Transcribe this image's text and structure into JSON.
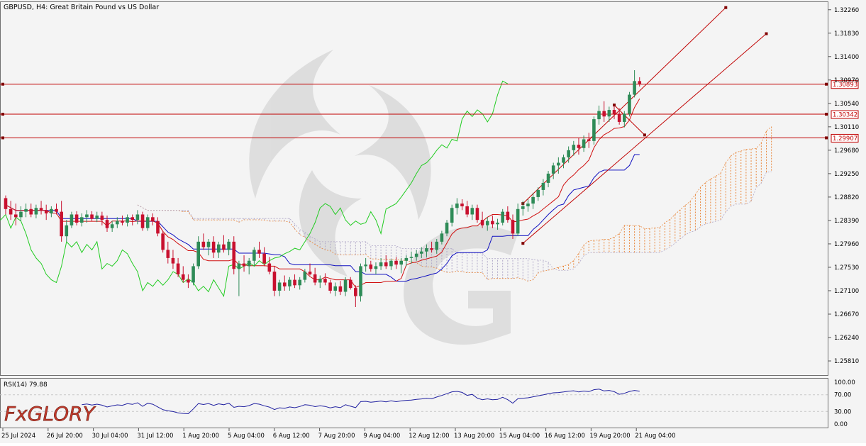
{
  "header": {
    "title": "GBPUSD, H4:  Great Britain Pound vs US Dollar"
  },
  "colors": {
    "bull": "#2e8b57",
    "bear": "#c8102e",
    "tenkan": "#d01010",
    "kijun": "#1010c0",
    "chikou": "#22cc22",
    "cloud_bull": "#e8863a",
    "cloud_bear": "#b0a8c8",
    "level": "#c00000",
    "rsi": "#2020a0",
    "grid": "#c8c8c8"
  },
  "price_axis": {
    "ticks": [
      "1.32260",
      "1.31830",
      "1.31400",
      "1.30970",
      "1.30540",
      "1.30110",
      "1.29680",
      "1.29250",
      "1.28820",
      "1.28390",
      "1.27960",
      "1.27530",
      "1.27100",
      "1.26670",
      "1.26240",
      "1.25810"
    ]
  },
  "time_axis": {
    "labels": [
      "25 Jul 2024",
      "26 Jul 20:00",
      "30 Jul 04:00",
      "31 Jul 12:00",
      "1 Aug 20:00",
      "5 Aug 04:00",
      "6 Aug 12:00",
      "7 Aug 20:00",
      "9 Aug 04:00",
      "12 Aug 12:00",
      "13 Aug 20:00",
      "15 Aug 04:00",
      "16 Aug 12:00",
      "19 Aug 20:00",
      "21 Aug 04:00"
    ]
  },
  "levels": [
    {
      "price": 1.30893,
      "label": "1.30893"
    },
    {
      "price": 1.30342,
      "label": "1.30342"
    },
    {
      "price": 1.29907,
      "label": "1.29907"
    }
  ],
  "rsi": {
    "label": "RSI(14) 79.88",
    "ticks": [
      "100.00",
      "70.00",
      "30.00",
      "0.00"
    ]
  },
  "logo": {
    "text": "FxGLORY"
  },
  "chart_data": {
    "type": "candlestick",
    "symbol": "GBPUSD",
    "timeframe": "H4",
    "ylim": [
      1.2555,
      1.324
    ],
    "candles": [
      [
        1.288,
        1.2885,
        1.285,
        1.286
      ],
      [
        1.286,
        1.2875,
        1.284,
        1.285
      ],
      [
        1.285,
        1.287,
        1.283,
        1.2845
      ],
      [
        1.2845,
        1.2865,
        1.2838,
        1.2855
      ],
      [
        1.2855,
        1.287,
        1.2845,
        1.286
      ],
      [
        1.286,
        1.287,
        1.2845,
        1.285
      ],
      [
        1.285,
        1.2868,
        1.2843,
        1.2862
      ],
      [
        1.2862,
        1.2875,
        1.285,
        1.2858
      ],
      [
        1.2858,
        1.2868,
        1.284,
        1.2852
      ],
      [
        1.2852,
        1.2865,
        1.2845,
        1.286
      ],
      [
        1.286,
        1.287,
        1.285,
        1.2855
      ],
      [
        1.2855,
        1.2875,
        1.28,
        1.281
      ],
      [
        1.281,
        1.284,
        1.28,
        1.283
      ],
      [
        1.283,
        1.2855,
        1.2825,
        1.285
      ],
      [
        1.285,
        1.2856,
        1.283,
        1.2835
      ],
      [
        1.2835,
        1.2852,
        1.2828,
        1.2845
      ],
      [
        1.2845,
        1.2858,
        1.2835,
        1.285
      ],
      [
        1.285,
        1.2856,
        1.2838,
        1.2842
      ],
      [
        1.2842,
        1.2855,
        1.2836,
        1.2848
      ],
      [
        1.2848,
        1.2855,
        1.283,
        1.284
      ],
      [
        1.284,
        1.2848,
        1.2818,
        1.2825
      ],
      [
        1.2825,
        1.2838,
        1.2818,
        1.2832
      ],
      [
        1.2832,
        1.2845,
        1.2825,
        1.2838
      ],
      [
        1.2838,
        1.2848,
        1.283,
        1.2835
      ],
      [
        1.2835,
        1.285,
        1.2828,
        1.2845
      ],
      [
        1.2845,
        1.285,
        1.283,
        1.284
      ],
      [
        1.284,
        1.2858,
        1.2832,
        1.285
      ],
      [
        1.285,
        1.2855,
        1.282,
        1.2825
      ],
      [
        1.2825,
        1.285,
        1.282,
        1.2845
      ],
      [
        1.2845,
        1.2852,
        1.283,
        1.2838
      ],
      [
        1.2838,
        1.2845,
        1.281,
        1.2815
      ],
      [
        1.2815,
        1.282,
        1.278,
        1.2785
      ],
      [
        1.2785,
        1.28,
        1.276,
        1.277
      ],
      [
        1.277,
        1.2785,
        1.275,
        1.276
      ],
      [
        1.276,
        1.277,
        1.2735,
        1.274
      ],
      [
        1.274,
        1.2755,
        1.2725,
        1.273
      ],
      [
        1.273,
        1.274,
        1.2715,
        1.2725
      ],
      [
        1.2725,
        1.276,
        1.272,
        1.2755
      ],
      [
        1.2755,
        1.281,
        1.275,
        1.28
      ],
      [
        1.28,
        1.2815,
        1.2785,
        1.279
      ],
      [
        1.279,
        1.2805,
        1.2775,
        1.28
      ],
      [
        1.28,
        1.281,
        1.277,
        1.278
      ],
      [
        1.278,
        1.28,
        1.277,
        1.2795
      ],
      [
        1.2795,
        1.2812,
        1.278,
        1.2785
      ],
      [
        1.2785,
        1.2805,
        1.2775,
        1.28
      ],
      [
        1.28,
        1.281,
        1.274,
        1.275
      ],
      [
        1.275,
        1.2765,
        1.27,
        1.276
      ],
      [
        1.276,
        1.2775,
        1.2745,
        1.2755
      ],
      [
        1.2755,
        1.277,
        1.274,
        1.2765
      ],
      [
        1.2765,
        1.279,
        1.2755,
        1.2785
      ],
      [
        1.2785,
        1.28,
        1.277,
        1.2778
      ],
      [
        1.2778,
        1.279,
        1.2755,
        1.276
      ],
      [
        1.276,
        1.2772,
        1.274,
        1.2745
      ],
      [
        1.2745,
        1.2755,
        1.27,
        1.271
      ],
      [
        1.271,
        1.273,
        1.27,
        1.2725
      ],
      [
        1.2725,
        1.2738,
        1.271,
        1.2718
      ],
      [
        1.2718,
        1.2735,
        1.271,
        1.273
      ],
      [
        1.273,
        1.274,
        1.2715,
        1.272
      ],
      [
        1.272,
        1.2735,
        1.2712,
        1.273
      ],
      [
        1.273,
        1.275,
        1.2725,
        1.2745
      ],
      [
        1.2745,
        1.276,
        1.2738,
        1.274
      ],
      [
        1.274,
        1.2752,
        1.272,
        1.2725
      ],
      [
        1.2725,
        1.2738,
        1.2715,
        1.2732
      ],
      [
        1.2732,
        1.2742,
        1.272,
        1.2725
      ],
      [
        1.2725,
        1.273,
        1.2705,
        1.271
      ],
      [
        1.271,
        1.2725,
        1.27,
        1.2718
      ],
      [
        1.2718,
        1.2728,
        1.2702,
        1.2708
      ],
      [
        1.2708,
        1.2735,
        1.27,
        1.273
      ],
      [
        1.273,
        1.2735,
        1.2712,
        1.2715
      ],
      [
        1.2715,
        1.272,
        1.268,
        1.27
      ],
      [
        1.27,
        1.276,
        1.269,
        1.2755
      ],
      [
        1.2755,
        1.277,
        1.2745,
        1.2758
      ],
      [
        1.2758,
        1.2765,
        1.2745,
        1.275
      ],
      [
        1.275,
        1.2762,
        1.274,
        1.2755
      ],
      [
        1.2755,
        1.277,
        1.2748,
        1.2762
      ],
      [
        1.2762,
        1.2775,
        1.275,
        1.2755
      ],
      [
        1.2755,
        1.2768,
        1.2748,
        1.2765
      ],
      [
        1.2765,
        1.2772,
        1.275,
        1.2758
      ],
      [
        1.2758,
        1.277,
        1.2742,
        1.2765
      ],
      [
        1.2765,
        1.2775,
        1.2755,
        1.277
      ],
      [
        1.277,
        1.2782,
        1.276,
        1.2772
      ],
      [
        1.2772,
        1.2785,
        1.2765,
        1.2778
      ],
      [
        1.2778,
        1.279,
        1.277,
        1.2782
      ],
      [
        1.2782,
        1.2795,
        1.2772,
        1.2788
      ],
      [
        1.2788,
        1.28,
        1.278,
        1.2785
      ],
      [
        1.2785,
        1.2805,
        1.2778,
        1.28
      ],
      [
        1.28,
        1.282,
        1.2795,
        1.2815
      ],
      [
        1.2815,
        1.284,
        1.281,
        1.2835
      ],
      [
        1.2835,
        1.2868,
        1.2828,
        1.2862
      ],
      [
        1.2862,
        1.288,
        1.285,
        1.287
      ],
      [
        1.287,
        1.2878,
        1.2858,
        1.2865
      ],
      [
        1.2865,
        1.2875,
        1.2845,
        1.285
      ],
      [
        1.285,
        1.2868,
        1.284,
        1.2862
      ],
      [
        1.2862,
        1.2868,
        1.2835,
        1.284
      ],
      [
        1.284,
        1.2855,
        1.2825,
        1.283
      ],
      [
        1.283,
        1.2845,
        1.282,
        1.2838
      ],
      [
        1.2838,
        1.2848,
        1.2825,
        1.2832
      ],
      [
        1.2832,
        1.2842,
        1.2822,
        1.2835
      ],
      [
        1.2835,
        1.286,
        1.283,
        1.2855
      ],
      [
        1.2855,
        1.2865,
        1.2835,
        1.284
      ],
      [
        1.284,
        1.285,
        1.2805,
        1.2815
      ],
      [
        1.2815,
        1.287,
        1.281,
        1.286
      ],
      [
        1.286,
        1.2875,
        1.2848,
        1.2865
      ],
      [
        1.2865,
        1.2878,
        1.2855,
        1.287
      ],
      [
        1.287,
        1.289,
        1.286,
        1.2882
      ],
      [
        1.2882,
        1.29,
        1.2875,
        1.2895
      ],
      [
        1.2895,
        1.2915,
        1.2885,
        1.2908
      ],
      [
        1.2908,
        1.293,
        1.29,
        1.2925
      ],
      [
        1.2925,
        1.2945,
        1.2915,
        1.294
      ],
      [
        1.294,
        1.2955,
        1.2925,
        1.2945
      ],
      [
        1.2945,
        1.296,
        1.2935,
        1.2955
      ],
      [
        1.2955,
        1.2975,
        1.2945,
        1.2968
      ],
      [
        1.2968,
        1.2985,
        1.2958,
        1.2978
      ],
      [
        1.2978,
        1.299,
        1.296,
        1.2972
      ],
      [
        1.2972,
        1.2995,
        1.2965,
        1.2988
      ],
      [
        1.2988,
        1.3,
        1.2972,
        1.2985
      ],
      [
        1.2985,
        1.303,
        1.2978,
        1.3025
      ],
      [
        1.3025,
        1.305,
        1.3015,
        1.304
      ],
      [
        1.304,
        1.3058,
        1.302,
        1.303
      ],
      [
        1.303,
        1.3048,
        1.302,
        1.3042
      ],
      [
        1.3042,
        1.305,
        1.3025,
        1.3035
      ],
      [
        1.3035,
        1.3045,
        1.3015,
        1.302
      ],
      [
        1.302,
        1.304,
        1.301,
        1.3035
      ],
      [
        1.3035,
        1.3075,
        1.303,
        1.307
      ],
      [
        1.307,
        1.3115,
        1.3065,
        1.3095
      ],
      [
        1.3095,
        1.3102,
        1.3085,
        1.309
      ]
    ],
    "levels": [
      1.30893,
      1.30342,
      1.29907
    ],
    "rsi_period": 14,
    "rsi_last": 79.88,
    "rsi_range": [
      0,
      100
    ],
    "rsi_guides": [
      70,
      30
    ]
  }
}
